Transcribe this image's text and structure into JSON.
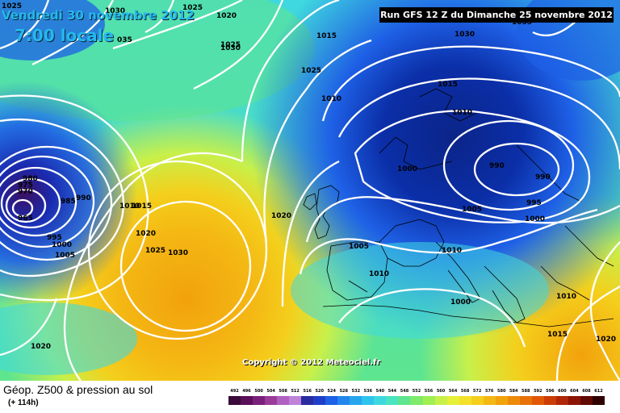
{
  "map": {
    "date_label": "Vendredi 30 novembre 2012",
    "time_label": "7:00 locale",
    "run_label": "Run GFS 12 Z du Dimanche 25 novembre 2012",
    "copyright": "Copyright © 2012 Meteociel.fr",
    "isobar_labels": [
      "1025",
      "1030",
      "035",
      "1025",
      "1030",
      "1025",
      "1015",
      "1010",
      "1030",
      "1025",
      "1020",
      "1015",
      "1010",
      "1000",
      "990",
      "990",
      "995",
      "1000",
      "1005",
      "1005",
      "1010",
      "1010",
      "1000",
      "1010",
      "1015",
      "1020",
      "1020",
      "1030",
      "1025",
      "1020",
      "980",
      "975",
      "970",
      "965",
      "985",
      "990",
      "995",
      "1000",
      "1005",
      "1020",
      "1015",
      "1010",
      "1035"
    ],
    "colors": {
      "deep_purple": "#3b1060",
      "dark_blue": "#0b2fa8",
      "blue": "#1e60e6",
      "light_blue": "#27a6ee",
      "cyan": "#3fd8e0",
      "green": "#5ee58f",
      "yellow_green": "#c8f04a",
      "yellow": "#f4cf1c",
      "orange": "#f2a20c"
    }
  },
  "legend": {
    "title": "Géop. Z500 & pression au sol",
    "subtitle": "(+ 114h)",
    "scale_values": [
      "492",
      "496",
      "500",
      "504",
      "508",
      "512",
      "516",
      "520",
      "524",
      "528",
      "532",
      "536",
      "540",
      "544",
      "548",
      "552",
      "556",
      "560",
      "564",
      "568",
      "572",
      "576",
      "580",
      "584",
      "588",
      "592",
      "596",
      "600",
      "604",
      "608",
      "612"
    ],
    "scale_colors": [
      "#3a0a3a",
      "#5a0f5a",
      "#7a207a",
      "#9a3b9a",
      "#b060c0",
      "#c081d8",
      "#2a2aa0",
      "#1f3ec8",
      "#1e60e6",
      "#2386ee",
      "#27a6ee",
      "#2fc4ee",
      "#3fd8e0",
      "#4ae4c0",
      "#5ee58f",
      "#7eeb6a",
      "#a0ee52",
      "#c8f04a",
      "#e6f038",
      "#f4e02a",
      "#f4cf1c",
      "#f4b814",
      "#f2a20c",
      "#ee8a0a",
      "#e87208",
      "#e05806",
      "#cc3c06",
      "#b02606",
      "#8c1404",
      "#600a02",
      "#300000"
    ]
  }
}
